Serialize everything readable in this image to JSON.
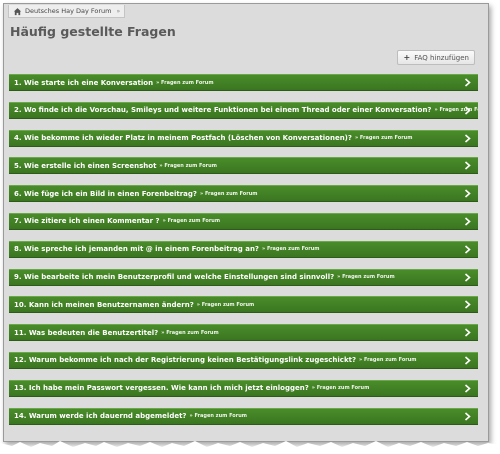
{
  "breadcrumb": {
    "home": "Deutsches Hay Day Forum",
    "separator": "»"
  },
  "page_title": "Häufig gestellte Fragen",
  "add_button": {
    "icon": "plus-icon",
    "label": "FAQ hinzufügen"
  },
  "category_tag": "» Fragen zum Forum",
  "faq": [
    {
      "question": "1. Wie starte ich eine Konversation"
    },
    {
      "question": "2. Wo finde ich die Vorschau, Smileys und weitere Funktionen bei einem Thread oder einer Konversation?"
    },
    {
      "question": "4. Wie bekomme ich wieder Platz in meinem Postfach (Löschen von Konversationen)?"
    },
    {
      "question": "5. Wie erstelle ich einen Screenshot"
    },
    {
      "question": "6. Wie füge ich ein Bild in einen Forenbeitrag?"
    },
    {
      "question": "7. Wie zitiere ich einen Kommentar ?"
    },
    {
      "question": "8. Wie spreche ich jemanden mit @ in einem Forenbeitrag an?"
    },
    {
      "question": "9. Wie bearbeite ich mein Benutzerprofil und welche Einstellungen sind sinnvoll?"
    },
    {
      "question": "10. Kann ich meinen Benutzernamen ändern?"
    },
    {
      "question": "11. Was bedeuten die Benutzertitel?"
    },
    {
      "question": "12. Warum bekomme ich nach der Registrierung keinen Bestätigungslink zugeschickt?"
    },
    {
      "question": "13. Ich habe mein Passwort vergessen. Wie kann ich mich jetzt einloggen?"
    },
    {
      "question": "14. Warum werde ich dauernd abgemeldet?"
    }
  ],
  "colors": {
    "row_green": "#3f7f24",
    "background": "#dcdcdc",
    "title_gray": "#5a5a5a"
  },
  "icons": {
    "home": "home-icon",
    "row_arrow": "chevron-right-icon"
  }
}
